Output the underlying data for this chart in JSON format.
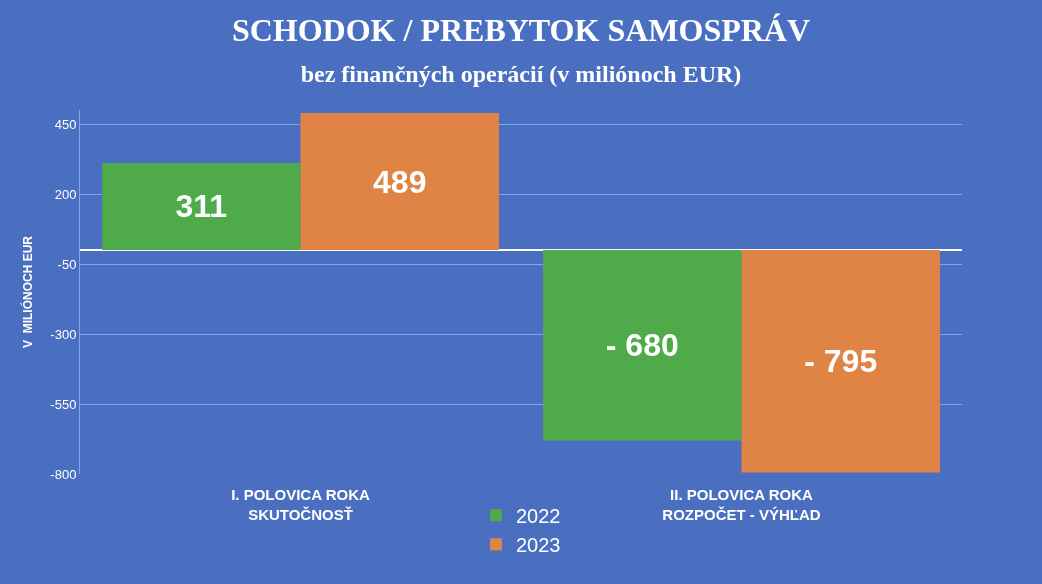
{
  "chart_data": {
    "type": "bar",
    "title": "SCHODOK / PREBYTOK SAMOSPRÁV",
    "subtitle": "bez finančných operácií (v miliónoch EUR)",
    "ylabel": "V  MILIÓNOCH EUR",
    "categories": [
      "I. POLOVICA ROKA\nSKUTOČNOSŤ",
      "II. POLOVICA ROKA\nROZPOČET - VÝHĽAD"
    ],
    "series": [
      {
        "name": "2022",
        "color": "#4fab4a",
        "values": [
          311,
          -680
        ],
        "value_labels": [
          "311",
          "- 680"
        ]
      },
      {
        "name": "2023",
        "color": "#df8444",
        "values": [
          489,
          -795
        ],
        "value_labels": [
          "489",
          "- 795"
        ]
      }
    ],
    "ylim": [
      -800,
      500
    ],
    "yticks": [
      450,
      200,
      -50,
      -300,
      -550,
      -800
    ],
    "grid": "y",
    "legend": "bottom"
  }
}
